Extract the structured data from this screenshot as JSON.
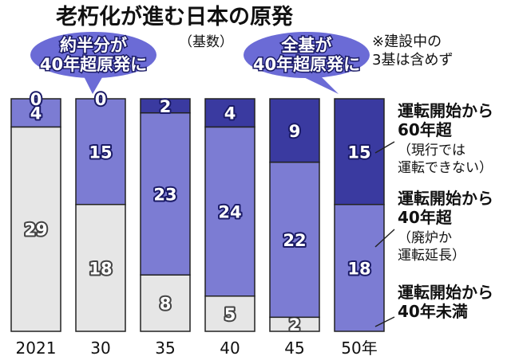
{
  "chart_data": {
    "type": "bar",
    "stacked": true,
    "title": "老朽化が進む日本の原発",
    "subtitle": "（基数）",
    "note": [
      "※建設中の",
      "3基は含めず"
    ],
    "categories": [
      "2021",
      "30",
      "35",
      "40",
      "45",
      "50年"
    ],
    "series": [
      {
        "name": "運転開始から40年未満",
        "values": [
          29,
          18,
          8,
          5,
          2,
          0
        ],
        "color": "#e6e6e6"
      },
      {
        "name": "運転開始から40年超",
        "values": [
          4,
          15,
          23,
          24,
          22,
          18
        ],
        "color": "#7c7cd3"
      },
      {
        "name": "運転開始から60年超",
        "values": [
          0,
          0,
          2,
          4,
          9,
          15
        ],
        "color": "#3a3aa0"
      }
    ],
    "legend": [
      {
        "title": [
          "運転開始から",
          "60年超"
        ],
        "sub": [
          "（現行では",
          "運転できない）"
        ]
      },
      {
        "title": [
          "運転開始から",
          "40年超"
        ],
        "sub": [
          "（廃炉か",
          "運転延長）"
        ]
      },
      {
        "title": [
          "運転開始から",
          "40年未満"
        ],
        "sub": []
      }
    ],
    "annotations": [
      {
        "lines": [
          "約半分が",
          "40年超原発に"
        ],
        "target": "30"
      },
      {
        "lines": [
          "全基が",
          "40年超原発に"
        ],
        "target": "50年"
      }
    ],
    "ylim": [
      0,
      33
    ],
    "legend_position": "right"
  }
}
